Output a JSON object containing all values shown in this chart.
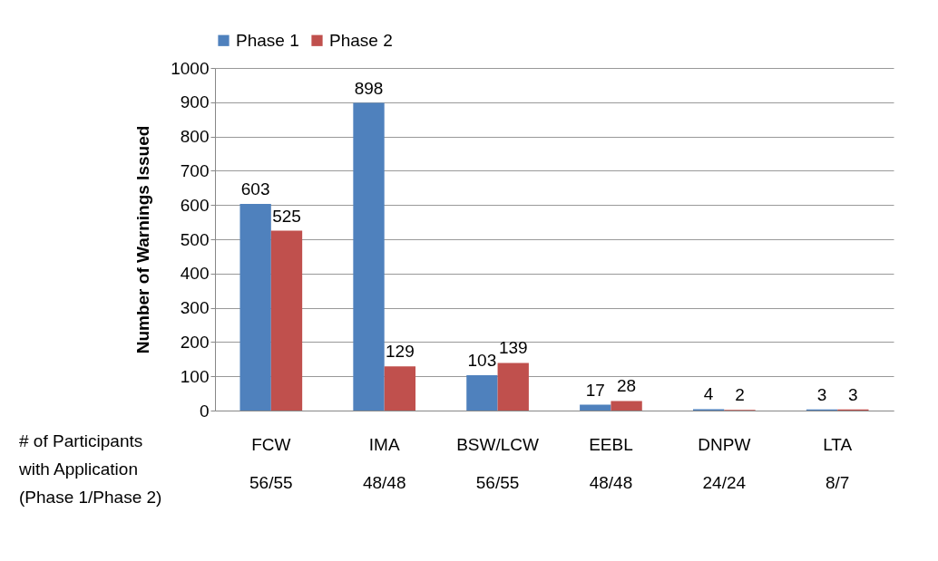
{
  "chart_data": {
    "type": "bar",
    "categories": [
      "FCW",
      "IMA",
      "BSW/LCW",
      "EEBL",
      "DNPW",
      "LTA"
    ],
    "series": [
      {
        "name": "Phase 1",
        "color": "#4f81bd",
        "values": [
          603,
          898,
          103,
          17,
          4,
          3
        ]
      },
      {
        "name": "Phase 2",
        "color": "#c0504d",
        "values": [
          525,
          129,
          139,
          28,
          2,
          3
        ]
      }
    ],
    "ylabel": "Number of Warnings Issued",
    "xlabel": "# of Participants with Application (Phase 1/Phase 2)",
    "ylim": [
      0,
      1000
    ],
    "yticks": [
      0,
      100,
      200,
      300,
      400,
      500,
      600,
      700,
      800,
      900,
      1000
    ],
    "grid": "y",
    "legend": "top",
    "data_labels": true,
    "annotations": [
      "56/55",
      "48/48",
      "56/55",
      "48/48",
      "24/24",
      "8/7"
    ]
  }
}
